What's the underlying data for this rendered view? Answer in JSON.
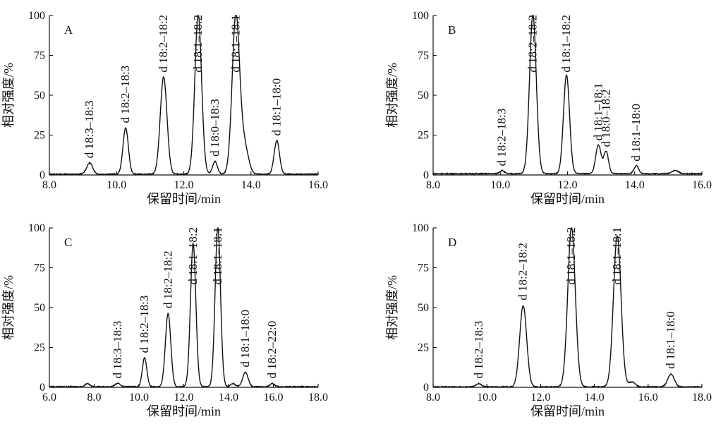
{
  "chart_data": [
    {
      "type": "line",
      "panel_label": "A",
      "xlabel": "保留时间/min",
      "ylabel": "相对强度/%",
      "xlim": [
        8.0,
        16.0
      ],
      "ylim": [
        0,
        100
      ],
      "xticks": [
        8.0,
        10.0,
        12.0,
        14.0,
        16.0
      ],
      "xtick_labels": [
        "8.0",
        "10.0",
        "12.0",
        "14.0",
        "16.0"
      ],
      "yticks": [
        0,
        25,
        50,
        75,
        100
      ],
      "ytick_labels": [
        "0",
        "25",
        "50",
        "75",
        "100"
      ],
      "baseline": 0.5,
      "peaks": [
        {
          "label": "d 18:3–18:3",
          "x": 9.2,
          "y": 7,
          "w": 0.09
        },
        {
          "label": "d 18:2–18:3",
          "x": 10.27,
          "y": 29,
          "w": 0.08
        },
        {
          "label": "d 18:2–18:2",
          "x": 11.4,
          "y": 61,
          "w": 0.1
        },
        {
          "label": "d 18:1–18:2",
          "x": 12.43,
          "y": 100,
          "w": 0.1
        },
        {
          "label": "d 18:0–18:3",
          "x": 12.93,
          "y": 8,
          "w": 0.07
        },
        {
          "label": "d 18:1–18:1",
          "x": 13.55,
          "y": 99,
          "w": 0.11
        },
        {
          "label": "d 18:1–18:0",
          "x": 14.77,
          "y": 21,
          "w": 0.08
        }
      ],
      "extra_peaks": [
        {
          "x": 13.8,
          "y": 18,
          "w": 0.12
        }
      ]
    },
    {
      "type": "line",
      "panel_label": "B",
      "xlabel": "保留时间/min",
      "ylabel": "相对强度/%",
      "xlim": [
        8.0,
        16.0
      ],
      "ylim": [
        0,
        100
      ],
      "xticks": [
        8.0,
        10.0,
        12.0,
        14.0,
        16.0
      ],
      "xtick_labels": [
        "8.0",
        "10.0",
        "12.0",
        "14.0",
        "16.0"
      ],
      "yticks": [
        0,
        25,
        50,
        75,
        100
      ],
      "ytick_labels": [
        "0",
        "25",
        "50",
        "75",
        "100"
      ],
      "baseline": 0.8,
      "peaks": [
        {
          "label": "d 18:2–18:3",
          "x": 10.05,
          "y": 2,
          "w": 0.07
        },
        {
          "label": "d 18:2–18:2",
          "x": 10.97,
          "y": 100,
          "w": 0.1
        },
        {
          "label": "d 18:1–18:2",
          "x": 11.97,
          "y": 62,
          "w": 0.09
        },
        {
          "label": "d 18:1–18:1",
          "x": 12.92,
          "y": 18,
          "w": 0.08
        },
        {
          "label": "d 18:0–18:2",
          "x": 13.15,
          "y": 14,
          "w": 0.07
        },
        {
          "label": "d 18:1–18:0",
          "x": 14.05,
          "y": 5,
          "w": 0.07
        }
      ],
      "extra_peaks": [
        {
          "x": 15.2,
          "y": 2,
          "w": 0.1
        }
      ]
    },
    {
      "type": "line",
      "panel_label": "C",
      "xlabel": "保留时间/min",
      "ylabel": "相对强度/%",
      "xlim": [
        6.0,
        18.0
      ],
      "ylim": [
        0,
        100
      ],
      "xticks": [
        6.0,
        8.0,
        10.0,
        12.0,
        14.0,
        16.0,
        18.0
      ],
      "xtick_labels": [
        "6.0",
        "8.0",
        "10.0",
        "12.0",
        "14.0",
        "16.0",
        "18.0"
      ],
      "yticks": [
        0,
        25,
        50,
        75,
        100
      ],
      "ytick_labels": [
        "0",
        "25",
        "50",
        "75",
        "100"
      ],
      "baseline": 0.4,
      "peaks": [
        {
          "label": "d 18:3–18:3",
          "x": 9.05,
          "y": 2,
          "w": 0.12
        },
        {
          "label": "d 18:2–18:3",
          "x": 10.25,
          "y": 18,
          "w": 0.1
        },
        {
          "label": "d 18:2–18:2",
          "x": 11.3,
          "y": 46,
          "w": 0.12
        },
        {
          "label": "d 18:1–18:2",
          "x": 12.42,
          "y": 90,
          "w": 0.12
        },
        {
          "label": "d 18:1–18:1",
          "x": 13.52,
          "y": 100,
          "w": 0.12
        },
        {
          "label": "d 18:1–18:0",
          "x": 14.75,
          "y": 9,
          "w": 0.12
        },
        {
          "label": "d 18:2–22:0",
          "x": 15.95,
          "y": 2,
          "w": 0.1
        }
      ],
      "extra_peaks": [
        {
          "x": 7.7,
          "y": 2,
          "w": 0.1
        },
        {
          "x": 14.2,
          "y": 2,
          "w": 0.1
        }
      ]
    },
    {
      "type": "line",
      "panel_label": "D",
      "xlabel": "保留时间/min",
      "ylabel": "相对强度/%",
      "xlim": [
        8.0,
        18.0
      ],
      "ylim": [
        0,
        100
      ],
      "xticks": [
        8.0,
        10.0,
        12.0,
        14.0,
        16.0,
        18.0
      ],
      "xtick_labels": [
        "8.0",
        "10.0",
        "12.0",
        "14.0",
        "16.0",
        "18.0"
      ],
      "yticks": [
        0,
        25,
        50,
        75,
        100
      ],
      "ytick_labels": [
        "0",
        "25",
        "50",
        "75",
        "100"
      ],
      "baseline": 0.3,
      "peaks": [
        {
          "label": "d 18:2–18:3",
          "x": 9.7,
          "y": 2,
          "w": 0.1
        },
        {
          "label": "d 18:2–18:2",
          "x": 11.35,
          "y": 51,
          "w": 0.13
        },
        {
          "label": "d 18:1–18:2",
          "x": 13.15,
          "y": 100,
          "w": 0.14
        },
        {
          "label": "d 18:1–18:1",
          "x": 14.85,
          "y": 95,
          "w": 0.14
        },
        {
          "label": "d 18:1–18:0",
          "x": 16.85,
          "y": 8,
          "w": 0.12
        }
      ],
      "extra_peaks": [
        {
          "x": 15.4,
          "y": 3,
          "w": 0.12
        }
      ]
    }
  ]
}
